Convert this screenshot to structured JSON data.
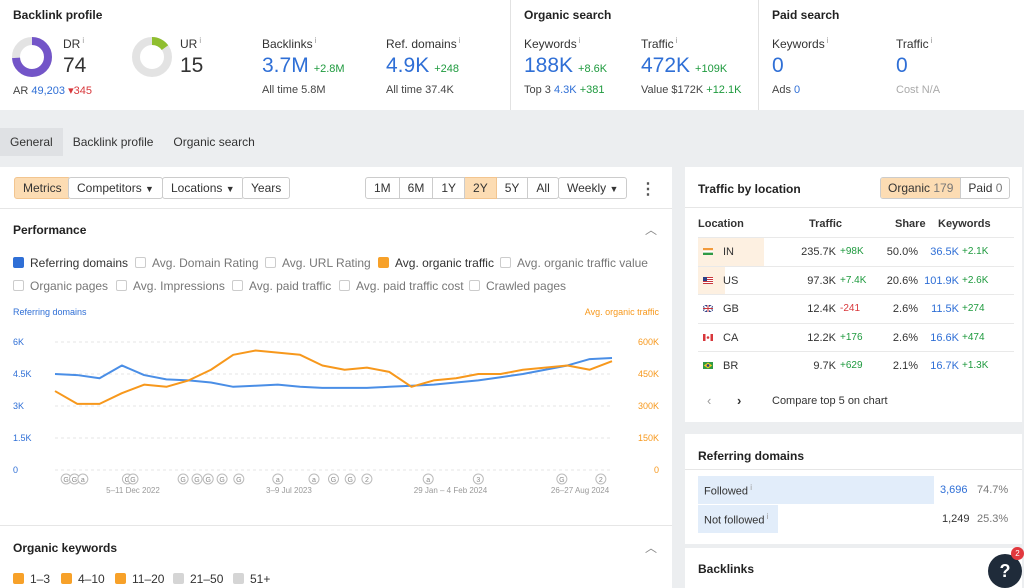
{
  "top": {
    "backlink_profile": {
      "title": "Backlink profile",
      "dr": {
        "label": "DR",
        "value": "74",
        "gauge_fraction": 0.74
      },
      "ur": {
        "label": "UR",
        "value": "15",
        "gauge_fraction": 0.15
      },
      "ar": {
        "label": "AR",
        "value": "49,203",
        "delta": "345"
      },
      "backlinks": {
        "label": "Backlinks",
        "value": "3.7M",
        "delta": "+2.8M",
        "sub_label": "All time",
        "sub_value": "5.8M"
      },
      "ref_domains": {
        "label": "Ref. domains",
        "value": "4.9K",
        "delta": "+248",
        "sub_label": "All time",
        "sub_value": "37.4K"
      }
    },
    "organic_search": {
      "title": "Organic search",
      "keywords": {
        "label": "Keywords",
        "value": "188K",
        "delta": "+8.6K",
        "sub_label": "Top 3",
        "sub_value": "4.3K",
        "sub_delta": "+381"
      },
      "traffic": {
        "label": "Traffic",
        "value": "472K",
        "delta": "+109K",
        "sub_label": "Value",
        "sub_value": "$172K",
        "sub_delta": "+12.1K"
      }
    },
    "paid_search": {
      "title": "Paid search",
      "keywords": {
        "label": "Keywords",
        "value": "0",
        "sub_label": "Ads",
        "sub_value": "0"
      },
      "traffic": {
        "label": "Traffic",
        "value": "0",
        "sub_label": "Cost",
        "sub_value": "N/A"
      }
    }
  },
  "tabs": [
    "General",
    "Backlink profile",
    "Organic search"
  ],
  "toolbar": {
    "metrics": "Metrics",
    "competitors": "Competitors",
    "locations": "Locations",
    "years": "Years",
    "ranges": [
      "1M",
      "6M",
      "1Y",
      "2Y",
      "5Y",
      "All"
    ],
    "selected_range": "2Y",
    "interval": "Weekly",
    "more": "⋮"
  },
  "performance": {
    "title": "Performance",
    "checkboxes": [
      {
        "label": "Referring domains",
        "state": "blue"
      },
      {
        "label": "Avg. Domain Rating",
        "state": "off"
      },
      {
        "label": "Avg. URL Rating",
        "state": "off"
      },
      {
        "label": "Avg. organic traffic",
        "state": "orange"
      },
      {
        "label": "Avg. organic traffic value",
        "state": "off"
      },
      {
        "label": "Organic pages",
        "state": "off"
      },
      {
        "label": "Avg. Impressions",
        "state": "off"
      },
      {
        "label": "Avg. paid traffic",
        "state": "off"
      },
      {
        "label": "Avg. paid traffic cost",
        "state": "off"
      },
      {
        "label": "Crawled pages",
        "state": "off"
      }
    ]
  },
  "chart_data": {
    "type": "line",
    "left_axis_label": "Referring domains",
    "right_axis_label": "Avg. organic traffic",
    "left_ticks": [
      "0",
      "1.5K",
      "3K",
      "4.5K",
      "6K"
    ],
    "right_ticks": [
      "0",
      "150K",
      "300K",
      "450K",
      "600K"
    ],
    "left_ylim": [
      0,
      6000
    ],
    "right_ylim": [
      0,
      600000
    ],
    "x_labels": [
      "5–11 Dec 2022",
      "3–9 Jul 2023",
      "29 Jan – 4 Feb 2024",
      "26–27 Aug 2024"
    ],
    "x": [
      0,
      0.04,
      0.08,
      0.12,
      0.16,
      0.2,
      0.24,
      0.28,
      0.32,
      0.36,
      0.4,
      0.44,
      0.48,
      0.52,
      0.56,
      0.6,
      0.64,
      0.68,
      0.72,
      0.76,
      0.8,
      0.84,
      0.88,
      0.92,
      0.96,
      1.0
    ],
    "series": [
      {
        "name": "Referring domains",
        "color": "#4a8ee6",
        "axis": "left",
        "values": [
          4500,
          4450,
          4300,
          4900,
          4450,
          4250,
          4200,
          4100,
          3900,
          3950,
          4000,
          3900,
          3850,
          3850,
          3850,
          3900,
          3950,
          4000,
          4100,
          4200,
          4350,
          4500,
          4700,
          4900,
          5200,
          5250
        ]
      },
      {
        "name": "Avg. organic traffic",
        "color": "#f7981c",
        "axis": "right",
        "values": [
          370000,
          310000,
          310000,
          360000,
          400000,
          390000,
          420000,
          470000,
          540000,
          560000,
          550000,
          540000,
          490000,
          470000,
          480000,
          460000,
          390000,
          420000,
          430000,
          450000,
          450000,
          470000,
          480000,
          490000,
          470000,
          510000
        ]
      }
    ],
    "annotations": [
      "G",
      "G",
      "a",
      "G",
      "G",
      "G",
      "G",
      "G",
      "G",
      "G",
      "a",
      "a",
      "G",
      "G",
      "2",
      "a",
      "3",
      "G",
      "2"
    ]
  },
  "organic_keywords": {
    "title": "Organic keywords",
    "filters": [
      {
        "label": "1–3",
        "state": "orange"
      },
      {
        "label": "4–10",
        "state": "orange"
      },
      {
        "label": "11–20",
        "state": "orange"
      },
      {
        "label": "21–50",
        "state": "grey"
      },
      {
        "label": "51+",
        "state": "grey"
      }
    ]
  },
  "traffic_by_location": {
    "title": "Traffic by location",
    "toggle": {
      "organic_label": "Organic",
      "organic_count": "179",
      "paid_label": "Paid",
      "paid_count": "0"
    },
    "headers": [
      "Location",
      "Traffic",
      "Share",
      "Keywords"
    ],
    "rows": [
      {
        "code": "IN",
        "traffic": "235.7K",
        "delta": "+98K",
        "share": "50.0%",
        "keywords": "36.5K",
        "kw_delta": "+2.1K",
        "flag": "india"
      },
      {
        "code": "US",
        "traffic": "97.3K",
        "delta": "+7.4K",
        "share": "20.6%",
        "keywords": "101.9K",
        "kw_delta": "+2.6K",
        "flag": "usa"
      },
      {
        "code": "GB",
        "traffic": "12.4K",
        "delta": "-241",
        "share": "2.6%",
        "keywords": "11.5K",
        "kw_delta": "+274",
        "flag": "uk"
      },
      {
        "code": "CA",
        "traffic": "12.2K",
        "delta": "+176",
        "share": "2.6%",
        "keywords": "16.6K",
        "kw_delta": "+474",
        "flag": "canada"
      },
      {
        "code": "BR",
        "traffic": "9.7K",
        "delta": "+629",
        "share": "2.1%",
        "keywords": "16.7K",
        "kw_delta": "+1.3K",
        "flag": "brazil"
      }
    ],
    "share_fraction": [
      0.5,
      0.206
    ],
    "compare_label": "Compare top 5 on chart"
  },
  "referring_domains": {
    "title": "Referring domains",
    "rows": [
      {
        "label": "Followed",
        "value": "3,696",
        "pct": "74.7%",
        "fraction": 0.747
      },
      {
        "label": "Not followed",
        "value": "1,249",
        "pct": "25.3%",
        "fraction": 0.253
      }
    ]
  },
  "backlinks_title": "Backlinks",
  "help": {
    "label": "?",
    "badge": "2"
  }
}
